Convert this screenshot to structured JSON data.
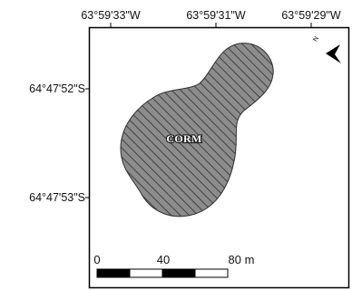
{
  "map": {
    "longitude_labels": [
      "63°59'33\"W",
      "63°59'31\"W",
      "63°59'29\"W"
    ],
    "latitude_labels": [
      "64°47'52\"S",
      "64°47'53\"S"
    ],
    "area_label": "CORM",
    "north_arrow_label": "N",
    "scale_bar": {
      "tick_labels": [
        "0",
        "40",
        "80 m"
      ]
    },
    "colors": {
      "polygon_fill": "#8c8c8c",
      "hatch": "#2e2e2e",
      "frame": "#000000"
    }
  }
}
